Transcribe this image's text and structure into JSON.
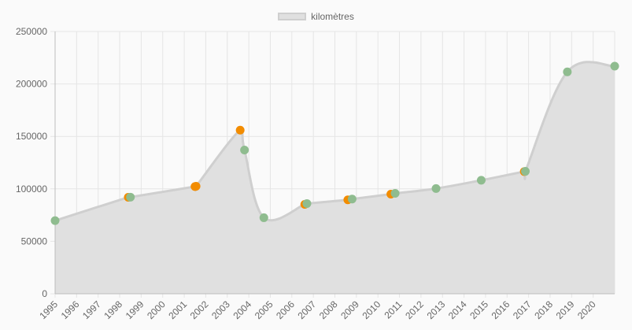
{
  "chart_data": {
    "type": "area",
    "legend": {
      "position": "top-center",
      "entries": [
        "kilomètres"
      ]
    },
    "series": [
      {
        "name": "kilomètres",
        "fill_color": "#e0e0e0",
        "line_color": "#cfcfcf",
        "points": [
          {
            "x": 1995.0,
            "y": 69700,
            "color": "#8fbc8f"
          },
          {
            "x": 1998.4,
            "y": 92000,
            "color": "#f28c00"
          },
          {
            "x": 1998.5,
            "y": 92100,
            "color": "#8fbc8f"
          },
          {
            "x": 2001.5,
            "y": 102200,
            "color": "#f28c00"
          },
          {
            "x": 2001.55,
            "y": 102500,
            "color": "#f28c00"
          },
          {
            "x": 2003.6,
            "y": 156000,
            "color": "#f28c00"
          },
          {
            "x": 2003.8,
            "y": 137000,
            "color": "#8fbc8f"
          },
          {
            "x": 2004.7,
            "y": 72500,
            "color": "#8fbc8f"
          },
          {
            "x": 2006.6,
            "y": 85200,
            "color": "#f28c00"
          },
          {
            "x": 2006.7,
            "y": 86000,
            "color": "#8fbc8f"
          },
          {
            "x": 2008.6,
            "y": 89500,
            "color": "#f28c00"
          },
          {
            "x": 2008.8,
            "y": 90300,
            "color": "#8fbc8f"
          },
          {
            "x": 2010.6,
            "y": 95000,
            "color": "#f28c00"
          },
          {
            "x": 2010.8,
            "y": 95700,
            "color": "#8fbc8f"
          },
          {
            "x": 2012.7,
            "y": 100300,
            "color": "#8fbc8f"
          },
          {
            "x": 2014.8,
            "y": 108200,
            "color": "#8fbc8f"
          },
          {
            "x": 2016.8,
            "y": 116500,
            "color": "#f28c00"
          },
          {
            "x": 2016.85,
            "y": 116700,
            "color": "#8fbc8f"
          },
          {
            "x": 2018.8,
            "y": 211500,
            "color": "#8fbc8f"
          },
          {
            "x": 2021.0,
            "y": 217000,
            "color": "#8fbc8f"
          }
        ]
      }
    ],
    "x_ticks": [
      1995,
      1996,
      1997,
      1998,
      1999,
      2000,
      2001,
      2002,
      2003,
      2004,
      2005,
      2006,
      2007,
      2008,
      2009,
      2010,
      2011,
      2012,
      2013,
      2014,
      2015,
      2016,
      2017,
      2018,
      2019,
      2020
    ],
    "y_ticks": [
      0,
      50000,
      100000,
      150000,
      200000,
      250000
    ],
    "xlim": [
      1995,
      2021
    ],
    "ylim": [
      0,
      250000
    ],
    "grid": true
  }
}
